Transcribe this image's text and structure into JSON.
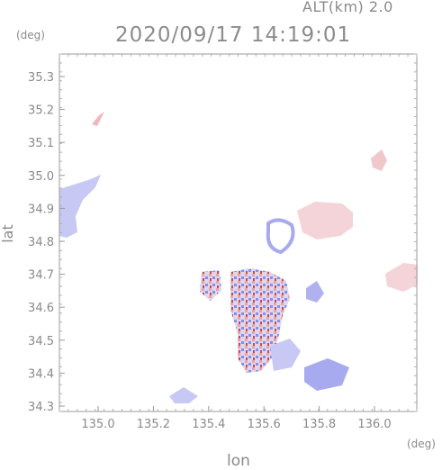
{
  "header": {
    "altitude_label": "ALT(km) 2.0",
    "timestamp": "2020/09/17 14:19:01"
  },
  "axes": {
    "lat_unit": "(deg)",
    "lon_unit": "(deg)",
    "lat_title": "lat",
    "lon_title": "lon",
    "lat_ticks": [
      "35.3",
      "35.2",
      "35.1",
      "35.0",
      "34.9",
      "34.8",
      "34.7",
      "34.6",
      "34.5",
      "34.4",
      "34.3"
    ],
    "lon_ticks": [
      "135.0",
      "135.2",
      "135.4",
      "135.6",
      "135.8",
      "136.0"
    ]
  },
  "colors": {
    "approaching": "#8a8cf0",
    "receding": "#f08a8a",
    "frame": "#9a9a9a"
  }
}
